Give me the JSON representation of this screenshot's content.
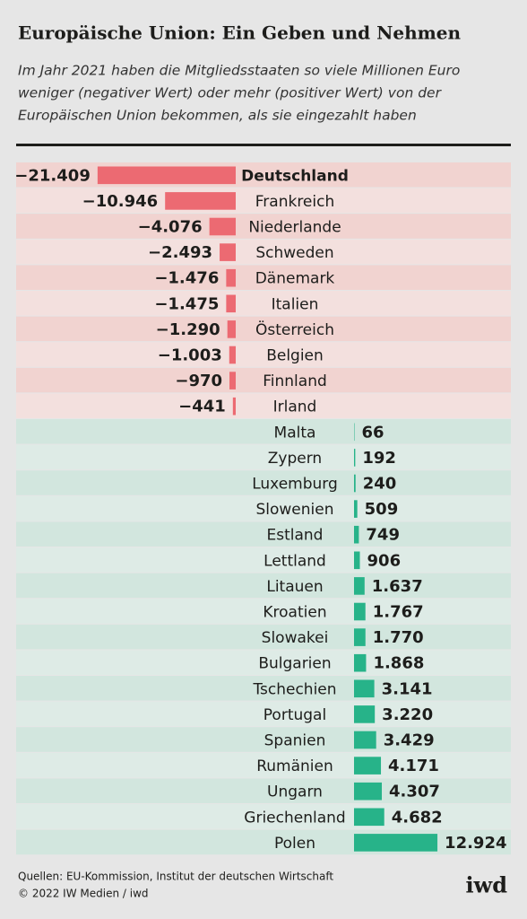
{
  "chart_data": {
    "type": "bar",
    "title": "Europäische Union: Ein Geben und Nehmen",
    "subtitle": [
      "Im Jahr 2021 haben die Mitgliedsstaaten so viele Millionen Euro",
      "weniger (negativer Wert) oder mehr (positiver Wert) von der",
      "Europäischen Union bekommen, als sie eingezahlt haben"
    ],
    "categories": [
      "Deutschland",
      "Frankreich",
      "Niederlande",
      "Schweden",
      "Dänemark",
      "Italien",
      "Österreich",
      "Belgien",
      "Finnland",
      "Irland",
      "Malta",
      "Zypern",
      "Luxemburg",
      "Slowenien",
      "Estland",
      "Lettland",
      "Litauen",
      "Kroatien",
      "Slowakei",
      "Bulgarien",
      "Tschechien",
      "Portugal",
      "Spanien",
      "Rumänien",
      "Ungarn",
      "Griechenland",
      "Polen"
    ],
    "values": [
      -21409,
      -10946,
      -4076,
      -2493,
      -1476,
      -1475,
      -1290,
      -1003,
      -970,
      -441,
      66,
      192,
      240,
      509,
      749,
      906,
      1637,
      1767,
      1770,
      1868,
      3141,
      3220,
      3429,
      4171,
      4307,
      4682,
      12924
    ],
    "value_labels": [
      "−21.409",
      "−10.946",
      "−4.076",
      "−2.493",
      "−1.476",
      "−1.475",
      "−1.290",
      "−1.003",
      "−970",
      "−441",
      "66",
      "192",
      "240",
      "509",
      "749",
      "906",
      "1.637",
      "1.767",
      "1.770",
      "1.868",
      "3.141",
      "3.220",
      "3.429",
      "4.171",
      "4.307",
      "4.682",
      "12.924"
    ],
    "negative_color": "#ec6a72",
    "positive_color": "#27b389",
    "source": [
      "Quellen: EU-Kommission, Institut der deutschen Wirtschaft",
      "© 2022 IW Medien / iwd"
    ],
    "logo": "iwd"
  }
}
